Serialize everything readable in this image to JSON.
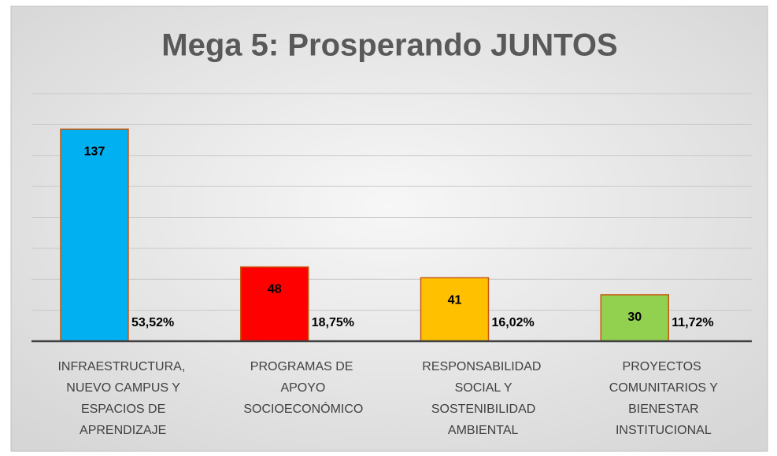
{
  "chart_data": {
    "type": "bar",
    "title": "Mega 5: Prosperando JUNTOS",
    "categories": [
      "INFRAESTRUCTURA, NUEVO CAMPUS Y ESPACIOS DE APRENDIZAJE",
      "PROGRAMAS DE APOYO SOCIOECONÓMICO",
      "RESPONSABILIDAD SOCIAL Y SOSTENIBILIDAD AMBIENTAL",
      "PROYECTOS COMUNITARIOS Y BIENESTAR INSTITUCIONAL"
    ],
    "values": [
      137,
      48,
      41,
      30
    ],
    "percent_labels": [
      "53,52%",
      "18,75%",
      "16,02%",
      "11,72%"
    ],
    "colors": [
      "#00b0f0",
      "#ff0000",
      "#ffc000",
      "#92d050"
    ],
    "ylim": [
      0,
      160
    ],
    "yticks": [
      0,
      20,
      40,
      60,
      80,
      100,
      120,
      140,
      160
    ],
    "grid": true
  }
}
